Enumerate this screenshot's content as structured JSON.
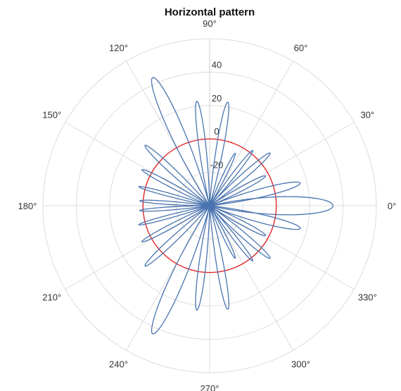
{
  "chart_data": {
    "type": "polar-line",
    "title": "Horizontal pattern",
    "angular_axis": {
      "unit": "deg",
      "ticks": [
        0,
        30,
        60,
        90,
        120,
        150,
        180,
        210,
        240,
        270,
        300,
        330
      ],
      "tick_labels": [
        "0°",
        "30°",
        "60°",
        "90°",
        "120°",
        "150°",
        "180°",
        "210°",
        "240°",
        "270°",
        "300°",
        "330°"
      ]
    },
    "radial_axis": {
      "range": [
        -40,
        60
      ],
      "ticks": [
        -20,
        0,
        20,
        40
      ],
      "tick_labels": [
        "-20",
        "0",
        "20",
        "40"
      ]
    },
    "grid": true,
    "colors": {
      "pattern": "#4a74b0",
      "reference": "#e0282a",
      "grid": "#dcdcdc"
    },
    "reference_circle": {
      "r": 0
    },
    "lobes": [
      {
        "angle": 0,
        "peak": 34,
        "width": 13
      },
      {
        "angle": 14,
        "peak": 16,
        "width": 8
      },
      {
        "angle": -14,
        "peak": 16,
        "width": 8
      },
      {
        "angle": 28,
        "peak": -2,
        "width": 6
      },
      {
        "angle": -28,
        "peak": -2,
        "width": 6
      },
      {
        "angle": 41,
        "peak": 8,
        "width": 6
      },
      {
        "angle": -41,
        "peak": 8,
        "width": 6
      },
      {
        "angle": 52,
        "peak": 2,
        "width": 5
      },
      {
        "angle": -52,
        "peak": 2,
        "width": 5
      },
      {
        "angle": 64,
        "peak": -5,
        "width": 5
      },
      {
        "angle": -64,
        "peak": -5,
        "width": 5
      },
      {
        "angle": 80,
        "peak": 23,
        "width": 6
      },
      {
        "angle": -80,
        "peak": 23,
        "width": 6
      },
      {
        "angle": 97,
        "peak": 23,
        "width": 6
      },
      {
        "angle": -97,
        "peak": 23,
        "width": 6
      },
      {
        "angle": 114,
        "peak": 44,
        "width": 9
      },
      {
        "angle": -114,
        "peak": 44,
        "width": 9
      },
      {
        "angle": 137,
        "peak": 13,
        "width": 6
      },
      {
        "angle": -137,
        "peak": 13,
        "width": 6
      },
      {
        "angle": 152,
        "peak": 6,
        "width": 5
      },
      {
        "angle": -152,
        "peak": 6,
        "width": 5
      },
      {
        "angle": 165,
        "peak": 4,
        "width": 4
      },
      {
        "angle": -165,
        "peak": 4,
        "width": 4
      },
      {
        "angle": 176,
        "peak": 2,
        "width": 4
      },
      {
        "angle": -176,
        "peak": 2,
        "width": 4
      }
    ]
  }
}
